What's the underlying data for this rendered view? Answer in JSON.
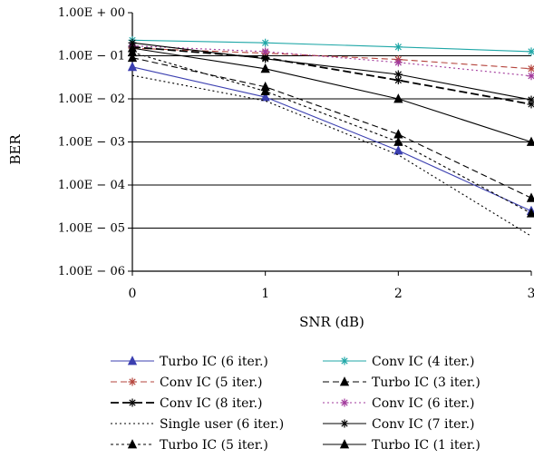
{
  "chart_data": {
    "type": "line",
    "xlabel": "SNR (dB)",
    "ylabel": "BER",
    "x": [
      0,
      1,
      2,
      3
    ],
    "x_tick_labels": [
      "0",
      "1",
      "2",
      "3"
    ],
    "y_scale": "log",
    "ylim": [
      1e-06,
      1
    ],
    "y_tick_labels": [
      "1.00E + 00",
      "1.00E − 01",
      "1.00E − 02",
      "1.00E − 03",
      "1.00E − 04",
      "1.00E − 05",
      "1.00E − 06"
    ],
    "grid": "horizontal",
    "legend_position": "bottom",
    "series": [
      {
        "name": "Turbo IC (6 iter.)",
        "color": "#3b3fb0",
        "marker": "triangle",
        "dash": "solid",
        "values": [
          0.055,
          0.011,
          0.00063,
          2.5e-05
        ]
      },
      {
        "name": "Conv IC (4 iter.)",
        "color": "#1fa7a7",
        "marker": "star",
        "dash": "solid",
        "values": [
          0.23,
          0.2,
          0.16,
          0.125
        ]
      },
      {
        "name": "Conv IC (5 iter.)",
        "color": "#b5453d",
        "marker": "star",
        "dash": "dashed",
        "values": [
          0.15,
          0.115,
          0.082,
          0.05
        ]
      },
      {
        "name": "Turbo IC (3 iter.)",
        "color": "#000000",
        "marker": "triangle",
        "dash": "dashed",
        "values": [
          0.09,
          0.019,
          0.0015,
          5e-05
        ]
      },
      {
        "name": "Conv IC (8 iter.)",
        "color": "#000000",
        "marker": "star",
        "dash": "dashed2",
        "values": [
          0.16,
          0.09,
          0.027,
          0.0075
        ]
      },
      {
        "name": "Conv IC (6 iter.)",
        "color": "#a23a9c",
        "marker": "star",
        "dash": "dotted",
        "values": [
          0.17,
          0.125,
          0.07,
          0.034
        ]
      },
      {
        "name": "Single user (6 iter.)",
        "color": "#000000",
        "marker": "none",
        "dash": "dotted",
        "values": [
          0.035,
          0.009,
          0.0005,
          6.5e-06
        ]
      },
      {
        "name": "Conv IC (7 iter.)",
        "color": "#000000",
        "marker": "star",
        "dash": "solid",
        "values": [
          0.2,
          0.085,
          0.037,
          0.0095
        ]
      },
      {
        "name": "Turbo IC (5 iter.)",
        "color": "#000000",
        "marker": "triangle",
        "dash": "dotted2",
        "values": [
          0.12,
          0.015,
          0.001,
          2.2e-05
        ]
      },
      {
        "name": "Turbo IC (1 iter.)",
        "color": "#000000",
        "marker": "triangle",
        "dash": "solid",
        "values": [
          0.15,
          0.05,
          0.01,
          0.001
        ]
      }
    ]
  }
}
